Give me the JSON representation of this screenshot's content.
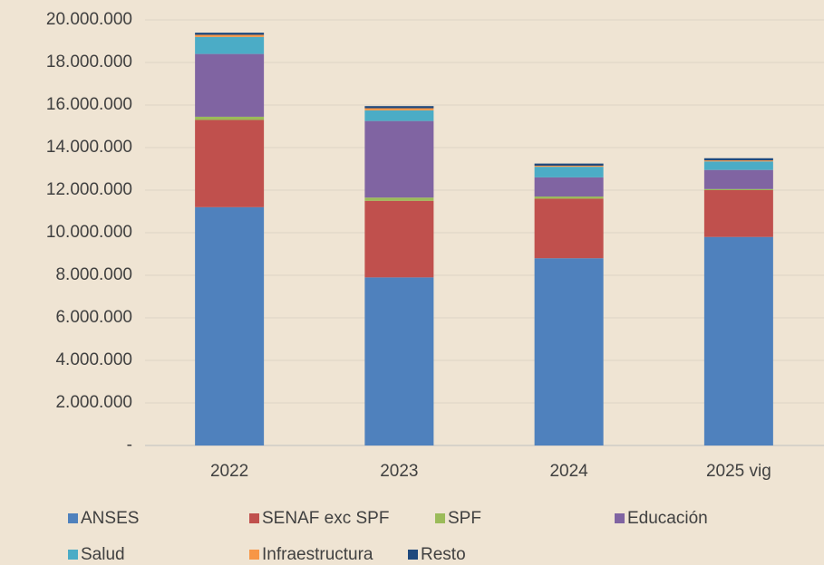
{
  "chart_data": {
    "type": "stacked_bar",
    "categories": [
      "2022",
      "2023",
      "2024",
      "2025 vig"
    ],
    "series": [
      {
        "name": "ANSES",
        "color": "#4f81bd",
        "values": [
          11200000,
          7900000,
          8800000,
          9800000
        ]
      },
      {
        "name": "SENAF exc SPF",
        "color": "#c0504d",
        "values": [
          4100000,
          3600000,
          2800000,
          2200000
        ]
      },
      {
        "name": "SPF",
        "color": "#9bbb59",
        "values": [
          150000,
          150000,
          100000,
          50000
        ]
      },
      {
        "name": "Educación",
        "color": "#8064a2",
        "values": [
          2950000,
          3600000,
          900000,
          900000
        ]
      },
      {
        "name": "Salud",
        "color": "#4bacc6",
        "values": [
          800000,
          500000,
          500000,
          400000
        ]
      },
      {
        "name": "Infraestructura",
        "color": "#f79646",
        "values": [
          100000,
          100000,
          50000,
          50000
        ]
      },
      {
        "name": "Resto",
        "color": "#1f497d",
        "values": [
          100000,
          100000,
          100000,
          100000
        ]
      }
    ],
    "ylim": [
      0,
      20000000
    ],
    "yticks": [
      {
        "value": 0,
        "label": "-"
      },
      {
        "value": 2000000,
        "label": "2.000.000"
      },
      {
        "value": 4000000,
        "label": "4.000.000"
      },
      {
        "value": 6000000,
        "label": "6.000.000"
      },
      {
        "value": 8000000,
        "label": "8.000.000"
      },
      {
        "value": 10000000,
        "label": "10.000.000"
      },
      {
        "value": 12000000,
        "label": "12.000.000"
      },
      {
        "value": 14000000,
        "label": "14.000.000"
      },
      {
        "value": 16000000,
        "label": "16.000.000"
      },
      {
        "value": 18000000,
        "label": "18.000.000"
      },
      {
        "value": 20000000,
        "label": "20.000.000"
      }
    ],
    "grid": true,
    "legend": "bottom"
  }
}
